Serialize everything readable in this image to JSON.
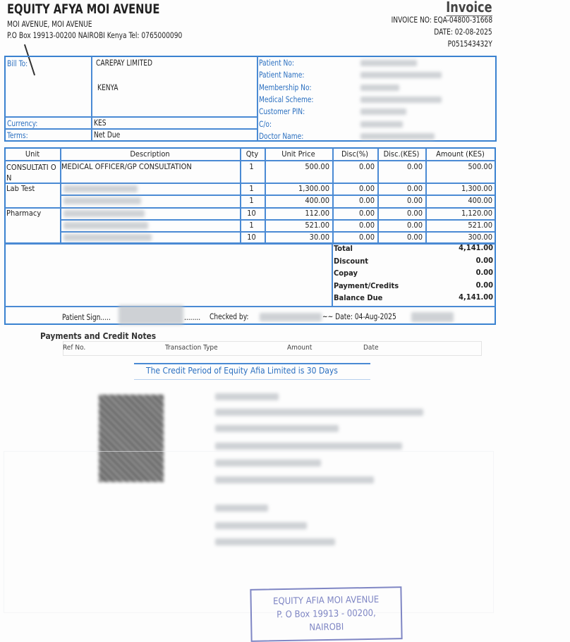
{
  "header": {
    "company": "EQUITY AFYA MOI AVENUE",
    "address1": "MOI AVENUE, MOI AVENUE",
    "address2": "P.O Box 19913-00200 NAIROBI Kenya Tel: 0765000090",
    "doc_title": "Invoice",
    "invoice_no": "INVOICE NO: EQA-04800-31668",
    "date": "DATE: 02-08-2025",
    "pin": "P051543432Y"
  },
  "billing": {
    "bill_to_label": "Bill To:",
    "bill_to_name": "CAREPAY LIMITED",
    "bill_to_country": "KENYA",
    "currency_label": "Currency:",
    "currency": "KES",
    "terms_label": "Terms:",
    "terms": "Net Due",
    "patient_labels": [
      "Patient No:",
      "Patient Name:",
      "Membership No:",
      "Medical Scheme:",
      "Customer PIN:",
      "C/o:",
      "Doctor Name:"
    ]
  },
  "items": {
    "headers": [
      "Unit",
      "Description",
      "Qty",
      "Unit Price",
      "Disc(%)",
      "Disc.(KES)",
      "Amount (KES)"
    ],
    "rows": [
      {
        "unit": "CONSULTATI ON",
        "desc": "MEDICAL OFFICER/GP CONSULTATION",
        "qty": "1",
        "price": "500.00",
        "disc_pct": "0.00",
        "disc": "0.00",
        "amount": "500.00"
      },
      {
        "unit": "Lab Test",
        "desc": "",
        "qty": "1",
        "price": "1,300.00",
        "disc_pct": "0.00",
        "disc": "0.00",
        "amount": "1,300.00"
      },
      {
        "unit": "",
        "desc": "",
        "qty": "1",
        "price": "400.00",
        "disc_pct": "0.00",
        "disc": "0.00",
        "amount": "400.00"
      },
      {
        "unit": "Pharmacy",
        "desc": "",
        "qty": "10",
        "price": "112.00",
        "disc_pct": "0.00",
        "disc": "0.00",
        "amount": "1,120.00"
      },
      {
        "unit": "",
        "desc": "",
        "qty": "1",
        "price": "521.00",
        "disc_pct": "0.00",
        "disc": "0.00",
        "amount": "521.00"
      },
      {
        "unit": "",
        "desc": "",
        "qty": "10",
        "price": "30.00",
        "disc_pct": "0.00",
        "disc": "0.00",
        "amount": "300.00"
      }
    ]
  },
  "totals": [
    {
      "label": "Total",
      "value": "4,141.00"
    },
    {
      "label": "Discount",
      "value": "0.00"
    },
    {
      "label": "Copay",
      "value": "0.00"
    },
    {
      "label": "Payment/Credits",
      "value": "0.00"
    },
    {
      "label": "Balance Due",
      "value": "4,141.00"
    }
  ],
  "signature": {
    "patient_sign": "Patient Sign.....",
    "dots": "........",
    "checked_by": "Checked by:",
    "date": "~~ Date: 04-Aug-2025"
  },
  "payments": {
    "title": "Payments and Credit Notes",
    "headers": [
      "Ref No.",
      "Transaction Type",
      "Amount",
      "Date"
    ]
  },
  "credit_note": "The Credit Period of Equity Afia Limited  is 30 Days",
  "stamp": {
    "line1": "EQUITY AFIA MOI AVENUE",
    "line2": "P. O  Box  19913 - 00200,",
    "line3": "NAIROBI"
  }
}
